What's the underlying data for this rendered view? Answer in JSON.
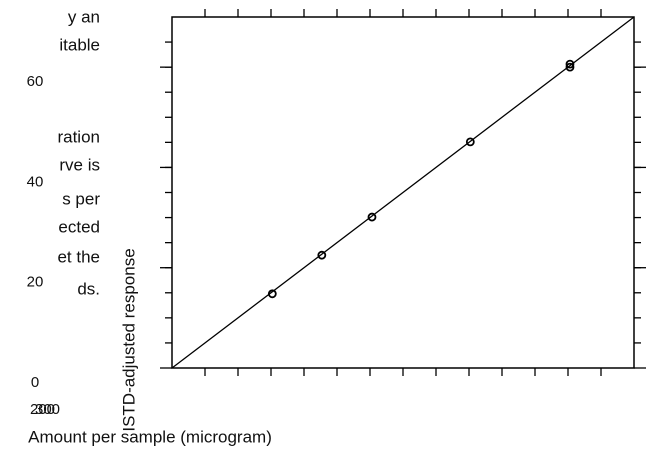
{
  "side_text": [
    "y an",
    "itable",
    "ration",
    "rve is",
    "s per",
    "ected",
    "et the",
    "ds."
  ],
  "stray_labels": [
    "200",
    "300"
  ],
  "chart_data": {
    "type": "scatter",
    "xlabel": "Amount per sample (microgram)",
    "ylabel": "ISTD-adjusted response",
    "x": [
      15.2,
      22.7,
      30.3,
      45.2,
      60.3,
      60.3
    ],
    "series": [
      {
        "color": "#000000",
        "values": [
          14.8,
          22.5,
          30.1,
          45.1,
          60.6,
          60
        ]
      }
    ],
    "fit_line": {
      "x": [
        0,
        70
      ],
      "y": [
        0,
        70
      ]
    },
    "xlim": [
      0,
      70
    ],
    "ylim": [
      0,
      70
    ],
    "yticks": [
      0,
      20,
      40,
      60
    ],
    "xticks_minor": [
      5,
      10,
      15,
      20,
      25,
      30,
      35,
      40,
      45,
      50,
      55,
      60,
      65
    ],
    "yticks_minor": [
      5,
      10,
      15,
      20,
      25,
      30,
      35,
      40,
      45,
      50,
      55,
      60,
      65
    ]
  }
}
